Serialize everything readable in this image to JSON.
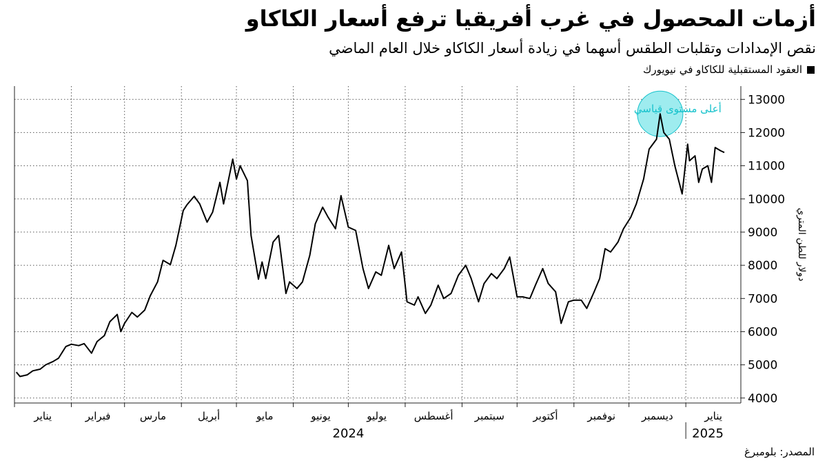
{
  "title": "أزمات المحصول في غرب أفريقيا ترفع أسعار الكاكاو",
  "subtitle": "نقص الإمدادات وتقلبات الطقس أسهما في زيادة أسعار الكاكاو خلال العام الماضي",
  "legend": {
    "label": "العقود المستقبلية للكاكاو في نيويورك",
    "color": "#000000"
  },
  "source": "المصدر: بلومبرغ",
  "colors": {
    "line": "#000000",
    "highlight": "#16c2cc",
    "highlight_fill": "#9eecef",
    "grid": "#555555",
    "axis": "#222222"
  },
  "chart_data": {
    "type": "line",
    "title": "أزمات المحصول في غرب أفريقيا ترفع أسعار الكاكاو",
    "subtitle": "نقص الإمدادات وتقلبات الطقس أسهما في زيادة أسعار الكاكاو خلال العام الماضي",
    "ylabel": "دولار للطن المتري",
    "ylim": [
      3850,
      13400
    ],
    "yticks": [
      4000,
      5000,
      6000,
      7000,
      8000,
      9000,
      10000,
      11000,
      12000,
      13000
    ],
    "y_axis_side": "right",
    "grid": "dotted vertical and horizontal",
    "x_start": "2024-01-01",
    "x_end": "2025-01-31",
    "month_ticks": [
      {
        "date": "2024-01-01",
        "label": "يناير"
      },
      {
        "date": "2024-02-01",
        "label": "فبراير"
      },
      {
        "date": "2024-03-01",
        "label": "مارس"
      },
      {
        "date": "2024-04-01",
        "label": "أبريل"
      },
      {
        "date": "2024-05-01",
        "label": "مايو"
      },
      {
        "date": "2024-06-01",
        "label": "يونيو"
      },
      {
        "date": "2024-07-01",
        "label": "يوليو"
      },
      {
        "date": "2024-08-01",
        "label": "أغسطس"
      },
      {
        "date": "2024-09-01",
        "label": "سبتمبر"
      },
      {
        "date": "2024-10-01",
        "label": "أكتوبر"
      },
      {
        "date": "2024-11-01",
        "label": "نوفمبر"
      },
      {
        "date": "2024-12-01",
        "label": "ديسمبر"
      },
      {
        "date": "2025-01-01",
        "label": "يناير"
      }
    ],
    "years": [
      {
        "label": "2024",
        "date": "2024-07-01"
      },
      {
        "label": "2025",
        "date": "2025-01-13"
      }
    ],
    "annotation": {
      "label": "أعلى مستوى قياسي",
      "date": "2024-12-18",
      "value": 12565
    },
    "series": [
      {
        "name": "العقود المستقبلية للكاكاو في نيويورك",
        "points": [
          [
            "2024-01-02",
            4780
          ],
          [
            "2024-01-04",
            4650
          ],
          [
            "2024-01-08",
            4700
          ],
          [
            "2024-01-11",
            4820
          ],
          [
            "2024-01-15",
            4870
          ],
          [
            "2024-01-18",
            5000
          ],
          [
            "2024-01-22",
            5100
          ],
          [
            "2024-01-25",
            5200
          ],
          [
            "2024-01-29",
            5550
          ],
          [
            "2024-02-01",
            5620
          ],
          [
            "2024-02-05",
            5580
          ],
          [
            "2024-02-08",
            5640
          ],
          [
            "2024-02-12",
            5350
          ],
          [
            "2024-02-15",
            5700
          ],
          [
            "2024-02-19",
            5880
          ],
          [
            "2024-02-22",
            6300
          ],
          [
            "2024-02-26",
            6520
          ],
          [
            "2024-02-28",
            6000
          ],
          [
            "2024-03-01",
            6250
          ],
          [
            "2024-03-05",
            6580
          ],
          [
            "2024-03-08",
            6440
          ],
          [
            "2024-03-12",
            6650
          ],
          [
            "2024-03-15",
            7080
          ],
          [
            "2024-03-19",
            7500
          ],
          [
            "2024-03-22",
            8150
          ],
          [
            "2024-03-26",
            8020
          ],
          [
            "2024-03-29",
            8600
          ],
          [
            "2024-04-02",
            9650
          ],
          [
            "2024-04-04",
            9820
          ],
          [
            "2024-04-08",
            10080
          ],
          [
            "2024-04-11",
            9850
          ],
          [
            "2024-04-15",
            9300
          ],
          [
            "2024-04-18",
            9600
          ],
          [
            "2024-04-22",
            10500
          ],
          [
            "2024-04-24",
            9850
          ],
          [
            "2024-04-29",
            11200
          ],
          [
            "2024-05-01",
            10600
          ],
          [
            "2024-05-03",
            11000
          ],
          [
            "2024-05-07",
            10550
          ],
          [
            "2024-05-09",
            8900
          ],
          [
            "2024-05-13",
            7580
          ],
          [
            "2024-05-15",
            8100
          ],
          [
            "2024-05-17",
            7600
          ],
          [
            "2024-05-21",
            8700
          ],
          [
            "2024-05-24",
            8900
          ],
          [
            "2024-05-28",
            7150
          ],
          [
            "2024-05-30",
            7500
          ],
          [
            "2024-06-03",
            7300
          ],
          [
            "2024-06-06",
            7500
          ],
          [
            "2024-06-10",
            8300
          ],
          [
            "2024-06-13",
            9250
          ],
          [
            "2024-06-17",
            9750
          ],
          [
            "2024-06-20",
            9450
          ],
          [
            "2024-06-24",
            9100
          ],
          [
            "2024-06-27",
            10100
          ],
          [
            "2024-07-01",
            9150
          ],
          [
            "2024-07-05",
            9050
          ],
          [
            "2024-07-09",
            7900
          ],
          [
            "2024-07-12",
            7300
          ],
          [
            "2024-07-16",
            7800
          ],
          [
            "2024-07-19",
            7700
          ],
          [
            "2024-07-23",
            8600
          ],
          [
            "2024-07-26",
            7900
          ],
          [
            "2024-07-30",
            8400
          ],
          [
            "2024-08-02",
            6900
          ],
          [
            "2024-08-06",
            6800
          ],
          [
            "2024-08-08",
            7050
          ],
          [
            "2024-08-12",
            6550
          ],
          [
            "2024-08-15",
            6800
          ],
          [
            "2024-08-19",
            7400
          ],
          [
            "2024-08-22",
            7000
          ],
          [
            "2024-08-26",
            7150
          ],
          [
            "2024-08-30",
            7700
          ],
          [
            "2024-09-03",
            8000
          ],
          [
            "2024-09-06",
            7600
          ],
          [
            "2024-09-10",
            6900
          ],
          [
            "2024-09-13",
            7450
          ],
          [
            "2024-09-17",
            7750
          ],
          [
            "2024-09-20",
            7600
          ],
          [
            "2024-09-24",
            7900
          ],
          [
            "2024-09-27",
            8250
          ],
          [
            "2024-10-01",
            7050
          ],
          [
            "2024-10-04",
            7050
          ],
          [
            "2024-10-08",
            7000
          ],
          [
            "2024-10-11",
            7400
          ],
          [
            "2024-10-15",
            7900
          ],
          [
            "2024-10-18",
            7450
          ],
          [
            "2024-10-22",
            7200
          ],
          [
            "2024-10-25",
            6250
          ],
          [
            "2024-10-29",
            6900
          ],
          [
            "2024-11-01",
            6950
          ],
          [
            "2024-11-05",
            6950
          ],
          [
            "2024-11-08",
            6700
          ],
          [
            "2024-11-12",
            7200
          ],
          [
            "2024-11-15",
            7600
          ],
          [
            "2024-11-18",
            8500
          ],
          [
            "2024-11-21",
            8400
          ],
          [
            "2024-11-25",
            8700
          ],
          [
            "2024-11-28",
            9100
          ],
          [
            "2024-12-02",
            9450
          ],
          [
            "2024-12-05",
            9850
          ],
          [
            "2024-12-09",
            10600
          ],
          [
            "2024-12-12",
            11500
          ],
          [
            "2024-12-16",
            11800
          ],
          [
            "2024-12-18",
            12565
          ],
          [
            "2024-12-20",
            12000
          ],
          [
            "2024-12-23",
            11800
          ],
          [
            "2024-12-26",
            11000
          ],
          [
            "2024-12-30",
            10150
          ],
          [
            "2025-01-02",
            11650
          ],
          [
            "2025-01-03",
            11150
          ],
          [
            "2025-01-06",
            11300
          ],
          [
            "2025-01-08",
            10500
          ],
          [
            "2025-01-10",
            10900
          ],
          [
            "2025-01-13",
            11000
          ],
          [
            "2025-01-15",
            10500
          ],
          [
            "2025-01-17",
            11550
          ],
          [
            "2025-01-20",
            11450
          ],
          [
            "2025-01-22",
            11400
          ]
        ]
      }
    ]
  }
}
